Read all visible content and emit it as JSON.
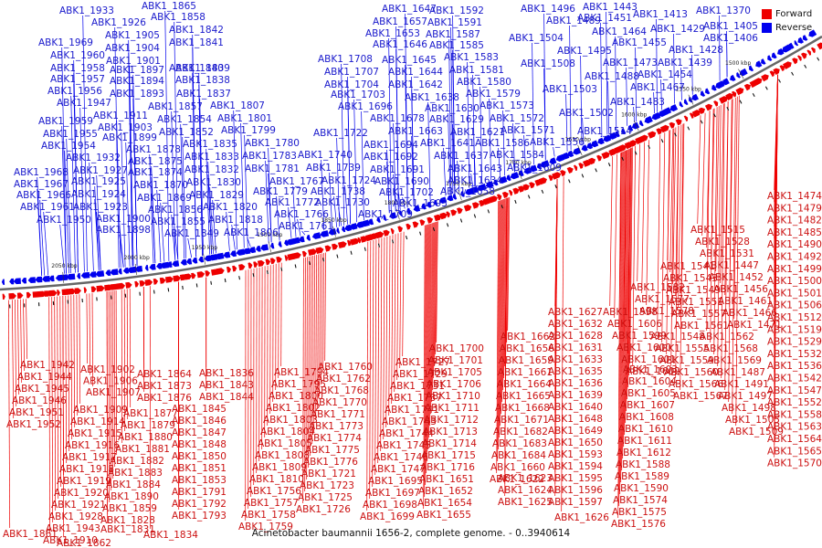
{
  "legend": [
    {
      "label": "Forward",
      "color": "#ee0000",
      "icon": "red-square-icon"
    },
    {
      "label": "Reverse",
      "color": "#0000ee",
      "icon": "blue-square-icon"
    }
  ],
  "caption": "Acinetobacter baumannii 1656-2, complete genome. - 0..3940614",
  "colors": {
    "forward": "#ee0000",
    "reverse": "#0000ee",
    "backbone": "#666666"
  },
  "ticks": [
    "2050 kbp",
    "2000 kbp",
    "1950 kbp",
    "1900 kbp",
    "1850 kbp",
    "1800 kbp",
    "1750 kbp",
    "1700 kbp",
    "1650 kbp",
    "1600 kbp",
    "1550 kbp",
    "1500 kbp"
  ],
  "reverse_labels": [
    "ABK1_1933",
    "ABK1_1865",
    "ABK1_1926",
    "ABK1_1858",
    "ABK1_1842",
    "ABK1_1905",
    "ABK1_1969",
    "ABK1_1841",
    "ABK1_1904",
    "ABK1_1960",
    "ABK1_1840",
    "ABK1_1901",
    "ABK1_1958",
    "ABK1_1897",
    "ABK1_1839",
    "ABK1_1957",
    "ABK1_1894",
    "ABK1_1838",
    "ABK1_1956",
    "ABK1_1893",
    "ABK1_1837",
    "ABK1_1947",
    "ABK1_1857",
    "ABK1_1807",
    "ABK1_1911",
    "ABK1_1959",
    "ABK1_1854",
    "ABK1_1801",
    "ABK1_1903",
    "ABK1_1955",
    "ABK1_1852",
    "ABK1_1799",
    "ABK1_1899",
    "ABK1_1954",
    "ABK1_1835",
    "ABK1_1780",
    "ABK1_1878",
    "ABK1_1932",
    "ABK1_1833",
    "ABK1_1875",
    "ABK1_1783",
    "ABK1_1927",
    "ABK1_1968",
    "ABK1_1874",
    "ABK1_1832",
    "ABK1_1781",
    "ABK1_1925",
    "ABK1_1967",
    "ABK1_1870",
    "ABK1_1830",
    "ABK1_1767",
    "ABK1_1924",
    "ABK1_1966",
    "ABK1_1869",
    "ABK1_1829",
    "ABK1_1779",
    "ABK1_1923",
    "ABK1_1961",
    "ABK1_1856",
    "ABK1_1820",
    "ABK1_1772",
    "ABK1_1900",
    "ABK1_1950",
    "ABK1_1855",
    "ABK1_1818",
    "ABK1_1766",
    "ABK1_1898",
    "ABK1_1849",
    "ABK1_1806",
    "ABK1_1761",
    "ABK1_1647",
    "ABK1_1592",
    "ABK1_1657",
    "ABK1_1591",
    "ABK1_1653",
    "ABK1_1587",
    "ABK1_1646",
    "ABK1_1585",
    "ABK1_1708",
    "ABK1_1645",
    "ABK1_1583",
    "ABK1_1707",
    "ABK1_1644",
    "ABK1_1581",
    "ABK1_1704",
    "ABK1_1642",
    "ABK1_1580",
    "ABK1_1703",
    "ABK1_1638",
    "ABK1_1579",
    "ABK1_1696",
    "ABK1_1630",
    "ABK1_1573",
    "ABK1_1678",
    "ABK1_1629",
    "ABK1_1572",
    "ABK1_1722",
    "ABK1_1663",
    "ABK1_1621",
    "ABK1_1571",
    "ABK1_1694",
    "ABK1_1641",
    "ABK1_1586",
    "ABK1_1740",
    "ABK1_1692",
    "ABK1_1637",
    "ABK1_1584",
    "ABK1_1739",
    "ABK1_1691",
    "ABK1_1643",
    "ABK1_1609",
    "ABK1_1724",
    "ABK1_1690",
    "ABK1_1634",
    "ABK1_1738",
    "ABK1_1702",
    "ABK1_1658",
    "ABK1_1730",
    "ABK1_1693",
    "ABK1_1709",
    "ABK1_1496",
    "ABK1_1443",
    "ABK1_1489",
    "ABK1_1451",
    "ABK1_1413",
    "ABK1_1370",
    "ABK1_1464",
    "ABK1_1429",
    "ABK1_1405",
    "ABK1_1504",
    "ABK1_1455",
    "ABK1_1406",
    "ABK1_1495",
    "ABK1_1428",
    "ABK1_1508",
    "ABK1_1473",
    "ABK1_1439",
    "ABK1_1488",
    "ABK1_1454",
    "ABK1_1503",
    "ABK1_1467",
    "ABK1_1483",
    "ABK1_1502",
    "ABK1_1514",
    "ABK1_1556"
  ],
  "forward_labels": [
    "ABK1_1942",
    "ABK1_1944",
    "ABK1_1945",
    "ABK1_1946",
    "ABK1_1951",
    "ABK1_1952",
    "ABK1_1902",
    "ABK1_1906",
    "ABK1_1907",
    "ABK1_1909",
    "ABK1_1914",
    "ABK1_1915",
    "ABK1_1916",
    "ABK1_1917",
    "ABK1_1918",
    "ABK1_1919",
    "ABK1_1920",
    "ABK1_1921",
    "ABK1_1928",
    "ABK1_1943",
    "ABK1_1910",
    "ABK1_1861",
    "ABK1_1862",
    "ABK1_1864",
    "ABK1_1873",
    "ABK1_1876",
    "ABK1_1877",
    "ABK1_1879",
    "ABK1_1880",
    "ABK1_1881",
    "ABK1_1882",
    "ABK1_1883",
    "ABK1_1884",
    "ABK1_1890",
    "ABK1_1859",
    "ABK1_1828",
    "ABK1_1831",
    "ABK1_1834",
    "ABK1_1836",
    "ABK1_1843",
    "ABK1_1844",
    "ABK1_1845",
    "ABK1_1846",
    "ABK1_1847",
    "ABK1_1848",
    "ABK1_1850",
    "ABK1_1851",
    "ABK1_1853",
    "ABK1_1791",
    "ABK1_1792",
    "ABK1_1793",
    "ABK1_1794",
    "ABK1_1795",
    "ABK1_1800",
    "ABK1_1802",
    "ABK1_1803",
    "ABK1_1804",
    "ABK1_1805",
    "ABK1_1808",
    "ABK1_1809",
    "ABK1_1810",
    "ABK1_1756",
    "ABK1_1757",
    "ABK1_1758",
    "ABK1_1759",
    "ABK1_1760",
    "ABK1_1762",
    "ABK1_1768",
    "ABK1_1770",
    "ABK1_1771",
    "ABK1_1773",
    "ABK1_1774",
    "ABK1_1775",
    "ABK1_1776",
    "ABK1_1721",
    "ABK1_1723",
    "ABK1_1725",
    "ABK1_1726",
    "ABK1_1727",
    "ABK1_1729",
    "ABK1_1731",
    "ABK1_1737",
    "ABK1_1741",
    "ABK1_1743",
    "ABK1_1744",
    "ABK1_1745",
    "ABK1_1746",
    "ABK1_1747",
    "ABK1_1695",
    "ABK1_1697",
    "ABK1_1698",
    "ABK1_1699",
    "ABK1_1700",
    "ABK1_1701",
    "ABK1_1705",
    "ABK1_1706",
    "ABK1_1710",
    "ABK1_1711",
    "ABK1_1712",
    "ABK1_1713",
    "ABK1_1714",
    "ABK1_1715",
    "ABK1_1716",
    "ABK1_1651",
    "ABK1_1652",
    "ABK1_1654",
    "ABK1_1655",
    "ABK1_1662",
    "ABK1_1656",
    "ABK1_1659",
    "ABK1_1661",
    "ABK1_1664",
    "ABK1_1665",
    "ABK1_1668",
    "ABK1_1671",
    "ABK1_1682",
    "ABK1_1683",
    "ABK1_1684",
    "ABK1_1660",
    "ABK1_1622",
    "ABK1_1623",
    "ABK1_1624",
    "ABK1_1625",
    "ABK1_1626",
    "ABK1_1627",
    "ABK1_1632",
    "ABK1_1628",
    "ABK1_1631",
    "ABK1_1633",
    "ABK1_1635",
    "ABK1_1636",
    "ABK1_1639",
    "ABK1_1640",
    "ABK1_1648",
    "ABK1_1649",
    "ABK1_1650",
    "ABK1_1593",
    "ABK1_1594",
    "ABK1_1595",
    "ABK1_1596",
    "ABK1_1597",
    "ABK1_1598",
    "ABK1_1606",
    "ABK1_1599",
    "ABK1_1600",
    "ABK1_1601",
    "ABK1_1602",
    "ABK1_1603",
    "ABK1_1604",
    "ABK1_1605",
    "ABK1_1607",
    "ABK1_1608",
    "ABK1_1610",
    "ABK1_1611",
    "ABK1_1612",
    "ABK1_1588",
    "ABK1_1589",
    "ABK1_1590",
    "ABK1_1574",
    "ABK1_1575",
    "ABK1_1576",
    "ABK1_1582",
    "ABK1_1577",
    "ABK1_1578",
    "ABK1_1548",
    "ABK1_1555",
    "ABK1_1559",
    "ABK1_1560",
    "ABK1_1566",
    "ABK1_1567",
    "ABK1_1541",
    "ABK1_1543",
    "ABK1_1549",
    "ABK1_1551",
    "ABK1_1557",
    "ABK1_1561",
    "ABK1_1562",
    "ABK1_1568",
    "ABK1_1569",
    "ABK1_1487",
    "ABK1_1491",
    "ABK1_1497",
    "ABK1_1498",
    "ABK1_1505",
    "ABK1_1509",
    "ABK1_1515",
    "ABK1_1528",
    "ABK1_1531",
    "ABK1_1447",
    "ABK1_1452",
    "ABK1_1456",
    "ABK1_1461",
    "ABK1_1466",
    "ABK1_1471",
    "ABK1_1474",
    "ABK1_1479",
    "ABK1_1482",
    "ABK1_1485",
    "ABK1_1490",
    "ABK1_1492",
    "ABK1_1499",
    "ABK1_1500",
    "ABK1_1501",
    "ABK1_1506",
    "ABK1_1512",
    "ABK1_1519",
    "ABK1_1529",
    "ABK1_1532",
    "ABK1_1536",
    "ABK1_1542",
    "ABK1_1547",
    "ABK1_1552",
    "ABK1_1558",
    "ABK1_1563",
    "ABK1_1564",
    "ABK1_1565",
    "ABK1_1570"
  ]
}
